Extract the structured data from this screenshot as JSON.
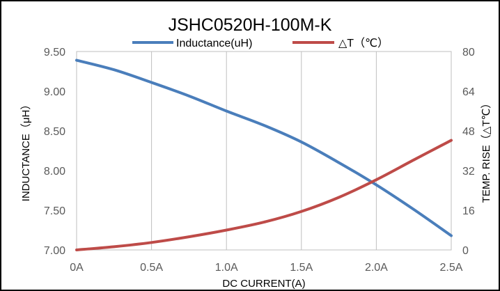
{
  "chart_data": {
    "type": "line",
    "title": "JSHC0520H-100M-K",
    "xlabel": "DC  CURRENT(A)",
    "ylabel_left": "INDUCTANCE（μH）",
    "ylabel_right": "TEMP.  RISE（△T℃）",
    "x_tick_labels": [
      "0A",
      "0.5A",
      "1.0A",
      "1.5A",
      "2.0A",
      "2.5A"
    ],
    "x_ticks": [
      0,
      0.5,
      1.0,
      1.5,
      2.0,
      2.5
    ],
    "xlim": [
      0,
      2.5
    ],
    "y_left_tick_labels": [
      "9.50",
      "9.00",
      "8.50",
      "8.00",
      "7.50",
      "7.00"
    ],
    "y_left_ticks": [
      9.5,
      9.0,
      8.5,
      8.0,
      7.5,
      7.0
    ],
    "ylim_left": [
      7.0,
      9.5
    ],
    "y_right_tick_labels": [
      "80",
      "64",
      "48",
      "32",
      "16",
      "0"
    ],
    "y_right_ticks": [
      80,
      64,
      48,
      32,
      16,
      0
    ],
    "ylim_right": [
      0,
      80
    ],
    "grid": "vertical",
    "legend_position": "top",
    "series": [
      {
        "name": "Inductance(uH)",
        "axis": "left",
        "color": "#4A7EBB",
        "x": [
          0,
          0.25,
          0.5,
          0.75,
          1.0,
          1.25,
          1.5,
          1.75,
          2.0,
          2.25,
          2.5
        ],
        "y": [
          9.39,
          9.27,
          9.11,
          8.94,
          8.75,
          8.57,
          8.36,
          8.1,
          7.82,
          7.51,
          7.18
        ]
      },
      {
        "name": "△T（℃）",
        "axis": "right",
        "color": "#BE4B48",
        "x": [
          0,
          0.25,
          0.5,
          0.75,
          1.0,
          1.25,
          1.5,
          1.75,
          2.0,
          2.25,
          2.5
        ],
        "y": [
          0,
          1.3,
          3.0,
          5.3,
          8.0,
          11.2,
          15.5,
          21.2,
          28.3,
          36.3,
          44.2
        ]
      }
    ]
  }
}
